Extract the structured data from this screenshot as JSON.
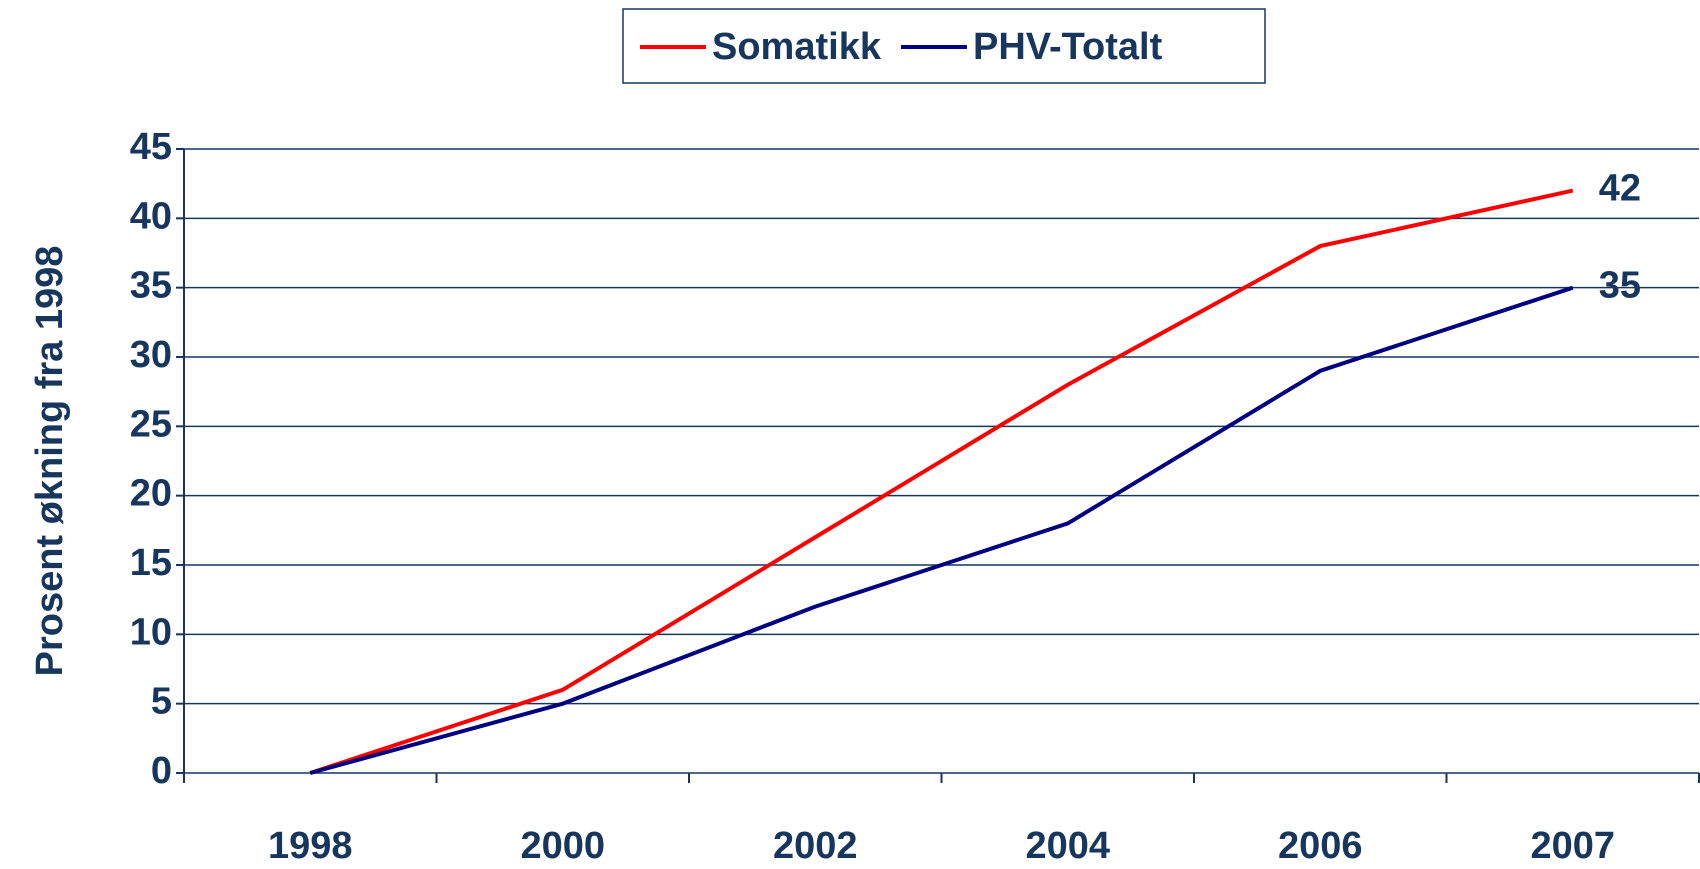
{
  "chart_data": {
    "type": "line",
    "y_label": "Prosent økning fra 1998",
    "categories": [
      "1998",
      "2000",
      "2002",
      "2004",
      "2006",
      "2007"
    ],
    "series": [
      {
        "name": "Somatikk",
        "color": "#ff0000",
        "values": [
          0,
          6,
          17,
          28,
          38,
          42
        ]
      },
      {
        "name": "PHV-Totalt",
        "color": "#000080",
        "values": [
          0,
          5,
          12,
          18,
          29,
          35
        ]
      }
    ],
    "ylim": [
      0,
      45
    ],
    "yticks": [
      0,
      5,
      10,
      15,
      20,
      25,
      30,
      35,
      40,
      45
    ],
    "grid": true,
    "legend": "top"
  }
}
